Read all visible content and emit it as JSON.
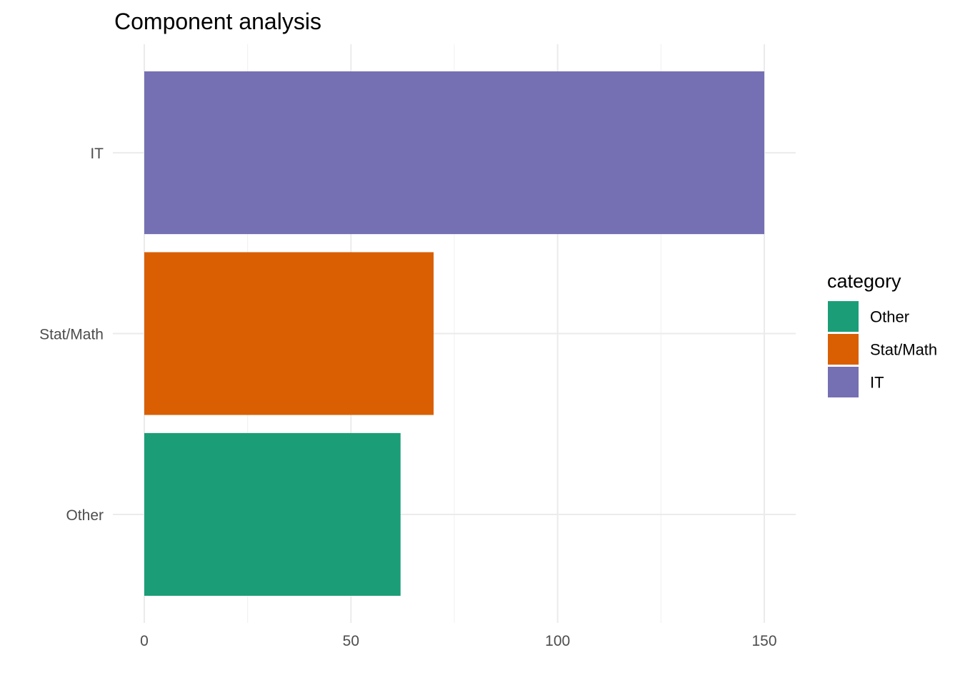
{
  "chart_data": {
    "type": "bar",
    "orientation": "horizontal",
    "title": "Component analysis",
    "xlabel": "",
    "ylabel": "",
    "categories": [
      "Other",
      "Stat/Math",
      "IT"
    ],
    "values": [
      62,
      70,
      150
    ],
    "colors": [
      "#1b9e77",
      "#d95f02",
      "#7570b3"
    ],
    "xlim": [
      0,
      157.5
    ],
    "xticks": [
      0,
      50,
      100,
      150
    ],
    "xtick_labels": [
      "0",
      "50",
      "100",
      "150"
    ],
    "grid": true,
    "legend": {
      "title": "category",
      "placement": "right",
      "entries": [
        {
          "label": "Other",
          "color": "#1b9e77"
        },
        {
          "label": "Stat/Math",
          "color": "#d95f02"
        },
        {
          "label": "IT",
          "color": "#7570b3"
        }
      ]
    }
  }
}
